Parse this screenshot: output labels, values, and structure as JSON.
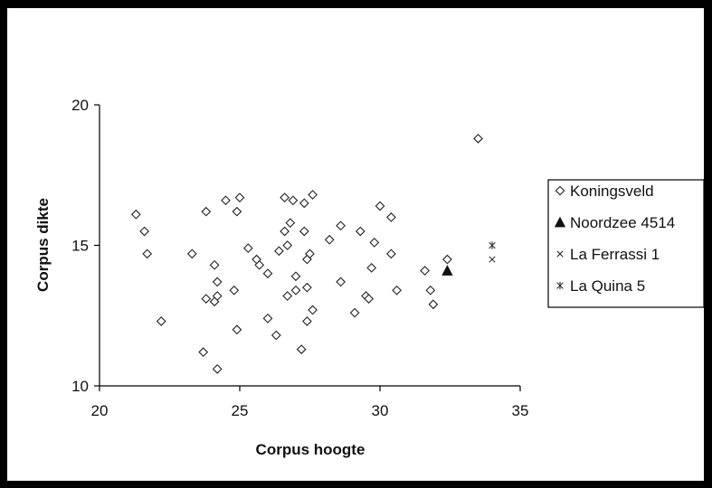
{
  "chart_data": {
    "type": "scatter",
    "xlabel": "Corpus hoogte",
    "ylabel": "Corpus dikte",
    "xlim": [
      20,
      35
    ],
    "ylim": [
      10,
      20
    ],
    "xticks": [
      "20",
      "25",
      "30",
      "35"
    ],
    "yticks": [
      "10",
      "15",
      "20"
    ],
    "grid": false,
    "legend_position": "right",
    "series": [
      {
        "name": "Koningsveld",
        "marker": "diamond-open",
        "color": "#222222",
        "points": [
          [
            21.3,
            16.1
          ],
          [
            21.6,
            15.5
          ],
          [
            21.7,
            14.7
          ],
          [
            22.2,
            12.3
          ],
          [
            23.3,
            14.7
          ],
          [
            23.7,
            11.2
          ],
          [
            23.8,
            16.2
          ],
          [
            23.8,
            13.1
          ],
          [
            24.1,
            14.3
          ],
          [
            24.1,
            13.0
          ],
          [
            24.2,
            13.7
          ],
          [
            24.2,
            13.2
          ],
          [
            24.2,
            10.6
          ],
          [
            24.5,
            16.6
          ],
          [
            24.8,
            13.4
          ],
          [
            24.9,
            12.0
          ],
          [
            24.9,
            16.2
          ],
          [
            25.0,
            16.7
          ],
          [
            25.3,
            14.9
          ],
          [
            25.6,
            14.5
          ],
          [
            25.7,
            14.3
          ],
          [
            26.0,
            14.0
          ],
          [
            26.0,
            12.4
          ],
          [
            26.3,
            11.8
          ],
          [
            26.4,
            14.8
          ],
          [
            26.6,
            16.7
          ],
          [
            26.6,
            15.5
          ],
          [
            26.7,
            15.0
          ],
          [
            26.7,
            13.2
          ],
          [
            26.8,
            15.8
          ],
          [
            26.9,
            16.6
          ],
          [
            27.0,
            13.9
          ],
          [
            27.0,
            13.4
          ],
          [
            27.2,
            11.3
          ],
          [
            27.3,
            16.5
          ],
          [
            27.3,
            15.5
          ],
          [
            27.4,
            14.5
          ],
          [
            27.4,
            13.5
          ],
          [
            27.4,
            12.3
          ],
          [
            27.5,
            14.7
          ],
          [
            27.6,
            16.8
          ],
          [
            27.6,
            12.7
          ],
          [
            28.2,
            15.2
          ],
          [
            28.6,
            13.7
          ],
          [
            28.6,
            15.7
          ],
          [
            29.1,
            12.6
          ],
          [
            29.3,
            15.5
          ],
          [
            29.5,
            13.2
          ],
          [
            29.6,
            13.1
          ],
          [
            29.7,
            14.2
          ],
          [
            29.8,
            15.1
          ],
          [
            30.0,
            16.4
          ],
          [
            30.4,
            16.0
          ],
          [
            30.4,
            14.7
          ],
          [
            30.6,
            13.4
          ],
          [
            31.6,
            14.1
          ],
          [
            31.8,
            13.4
          ],
          [
            31.9,
            12.9
          ],
          [
            32.4,
            14.5
          ],
          [
            33.5,
            18.8
          ]
        ]
      },
      {
        "name": "Noordzee 4514",
        "marker": "triangle-filled",
        "color": "#111111",
        "points": [
          [
            32.4,
            14.1
          ]
        ]
      },
      {
        "name": "La Ferrassi 1",
        "marker": "x",
        "color": "#333333",
        "points": [
          [
            34.0,
            14.5
          ]
        ]
      },
      {
        "name": "La Quina 5",
        "marker": "asterisk",
        "color": "#333333",
        "points": [
          [
            34.0,
            15.0
          ]
        ]
      }
    ]
  }
}
